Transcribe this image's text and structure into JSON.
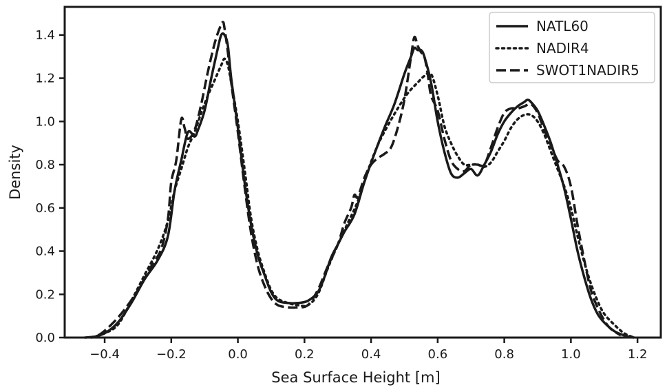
{
  "chart_data": {
    "type": "line",
    "title": "",
    "xlabel": "Sea Surface Height [m]",
    "ylabel": "Density",
    "xlim": [
      -0.52,
      1.27
    ],
    "ylim": [
      0.0,
      1.53
    ],
    "xticks": [
      -0.4,
      -0.2,
      0.0,
      0.2,
      0.4,
      0.6,
      0.8,
      1.0,
      1.2
    ],
    "xtick_labels": [
      "−0.4",
      "−0.2",
      "0.0",
      "0.2",
      "0.4",
      "0.6",
      "0.8",
      "1.0",
      "1.2"
    ],
    "yticks": [
      0.0,
      0.2,
      0.4,
      0.6,
      0.8,
      1.0,
      1.2,
      1.4
    ],
    "ytick_labels": [
      "0.0",
      "0.2",
      "0.4",
      "0.6",
      "0.8",
      "1.0",
      "1.2",
      "1.4"
    ],
    "grid": false,
    "legend_position": "top-right",
    "line_color": "#1a1a1a",
    "series": [
      {
        "name": "NATL60",
        "style": "solid",
        "x": [
          -0.44,
          -0.4,
          -0.36,
          -0.32,
          -0.28,
          -0.24,
          -0.21,
          -0.19,
          -0.17,
          -0.15,
          -0.13,
          -0.12,
          -0.1,
          -0.08,
          -0.06,
          -0.05,
          -0.04,
          -0.03,
          -0.02,
          0.0,
          0.02,
          0.04,
          0.06,
          0.08,
          0.1,
          0.12,
          0.15,
          0.18,
          0.21,
          0.24,
          0.26,
          0.28,
          0.3,
          0.32,
          0.35,
          0.38,
          0.41,
          0.44,
          0.47,
          0.5,
          0.52,
          0.53,
          0.54,
          0.55,
          0.56,
          0.58,
          0.6,
          0.62,
          0.64,
          0.66,
          0.68,
          0.7,
          0.72,
          0.74,
          0.76,
          0.78,
          0.8,
          0.82,
          0.84,
          0.86,
          0.87,
          0.88,
          0.9,
          0.92,
          0.94,
          0.96,
          0.98,
          1.0,
          1.02,
          1.04,
          1.06,
          1.08,
          1.1,
          1.13,
          1.16,
          1.19
        ],
        "y": [
          0.0,
          0.02,
          0.07,
          0.16,
          0.27,
          0.36,
          0.47,
          0.68,
          0.82,
          0.95,
          0.93,
          0.96,
          1.05,
          1.2,
          1.34,
          1.4,
          1.4,
          1.35,
          1.2,
          0.97,
          0.72,
          0.52,
          0.38,
          0.29,
          0.21,
          0.17,
          0.16,
          0.16,
          0.17,
          0.21,
          0.28,
          0.37,
          0.43,
          0.49,
          0.57,
          0.72,
          0.85,
          0.97,
          1.08,
          1.22,
          1.3,
          1.34,
          1.33,
          1.33,
          1.3,
          1.18,
          1.0,
          0.86,
          0.76,
          0.74,
          0.76,
          0.78,
          0.75,
          0.8,
          0.86,
          0.94,
          1.0,
          1.04,
          1.07,
          1.09,
          1.1,
          1.09,
          1.05,
          0.98,
          0.9,
          0.8,
          0.69,
          0.55,
          0.4,
          0.28,
          0.18,
          0.11,
          0.07,
          0.03,
          0.01,
          0.0
        ]
      },
      {
        "name": "NADIR4",
        "style": "dotted",
        "x": [
          -0.44,
          -0.4,
          -0.36,
          -0.32,
          -0.28,
          -0.24,
          -0.21,
          -0.19,
          -0.17,
          -0.15,
          -0.13,
          -0.11,
          -0.09,
          -0.07,
          -0.05,
          -0.04,
          -0.03,
          -0.02,
          0.0,
          0.02,
          0.04,
          0.06,
          0.08,
          0.1,
          0.12,
          0.15,
          0.18,
          0.21,
          0.24,
          0.27,
          0.3,
          0.33,
          0.36,
          0.39,
          0.42,
          0.45,
          0.48,
          0.51,
          0.54,
          0.56,
          0.58,
          0.6,
          0.62,
          0.64,
          0.66,
          0.68,
          0.7,
          0.72,
          0.74,
          0.76,
          0.78,
          0.8,
          0.82,
          0.84,
          0.86,
          0.88,
          0.9,
          0.92,
          0.94,
          0.96,
          0.98,
          1.0,
          1.02,
          1.04,
          1.06,
          1.08,
          1.1,
          1.13,
          1.16,
          1.19
        ],
        "y": [
          0.0,
          0.02,
          0.06,
          0.17,
          0.29,
          0.41,
          0.54,
          0.68,
          0.78,
          0.88,
          0.95,
          1.04,
          1.12,
          1.19,
          1.26,
          1.29,
          1.26,
          1.18,
          1.0,
          0.78,
          0.55,
          0.4,
          0.3,
          0.22,
          0.18,
          0.16,
          0.15,
          0.15,
          0.2,
          0.32,
          0.43,
          0.53,
          0.63,
          0.77,
          0.89,
          0.98,
          1.06,
          1.13,
          1.18,
          1.21,
          1.22,
          1.12,
          0.98,
          0.9,
          0.84,
          0.8,
          0.8,
          0.8,
          0.79,
          0.81,
          0.86,
          0.91,
          0.97,
          1.01,
          1.03,
          1.03,
          1.0,
          0.94,
          0.86,
          0.78,
          0.7,
          0.6,
          0.47,
          0.35,
          0.25,
          0.17,
          0.11,
          0.06,
          0.02,
          0.0
        ]
      },
      {
        "name": "SWOT1NADIR5",
        "style": "dashed",
        "x": [
          -0.46,
          -0.42,
          -0.38,
          -0.34,
          -0.3,
          -0.26,
          -0.23,
          -0.21,
          -0.2,
          -0.185,
          -0.17,
          -0.16,
          -0.15,
          -0.13,
          -0.11,
          -0.09,
          -0.07,
          -0.055,
          -0.045,
          -0.04,
          -0.03,
          -0.02,
          0.0,
          0.02,
          0.04,
          0.06,
          0.08,
          0.1,
          0.12,
          0.15,
          0.18,
          0.21,
          0.24,
          0.27,
          0.3,
          0.32,
          0.34,
          0.35,
          0.36,
          0.38,
          0.4,
          0.42,
          0.44,
          0.46,
          0.48,
          0.5,
          0.52,
          0.53,
          0.54,
          0.55,
          0.56,
          0.57,
          0.58,
          0.6,
          0.62,
          0.64,
          0.66,
          0.68,
          0.7,
          0.72,
          0.74,
          0.76,
          0.78,
          0.8,
          0.82,
          0.84,
          0.86,
          0.88,
          0.9,
          0.92,
          0.94,
          0.96,
          0.98,
          1.0,
          1.02,
          1.04,
          1.06,
          1.08,
          1.1,
          1.12,
          1.15
        ],
        "y": [
          0.0,
          0.01,
          0.06,
          0.13,
          0.22,
          0.33,
          0.41,
          0.55,
          0.72,
          0.82,
          1.01,
          0.97,
          0.92,
          0.96,
          1.08,
          1.23,
          1.36,
          1.43,
          1.46,
          1.43,
          1.32,
          1.18,
          0.95,
          0.7,
          0.48,
          0.33,
          0.24,
          0.18,
          0.15,
          0.14,
          0.14,
          0.15,
          0.22,
          0.33,
          0.43,
          0.53,
          0.6,
          0.66,
          0.65,
          0.74,
          0.8,
          0.83,
          0.85,
          0.88,
          0.97,
          1.1,
          1.3,
          1.39,
          1.35,
          1.32,
          1.3,
          1.22,
          1.12,
          1.05,
          0.92,
          0.82,
          0.78,
          0.77,
          0.8,
          0.8,
          0.8,
          0.88,
          0.97,
          1.04,
          1.06,
          1.06,
          1.07,
          1.08,
          1.04,
          0.96,
          0.89,
          0.82,
          0.79,
          0.7,
          0.52,
          0.36,
          0.22,
          0.14,
          0.08,
          0.04,
          0.01
        ]
      }
    ]
  }
}
